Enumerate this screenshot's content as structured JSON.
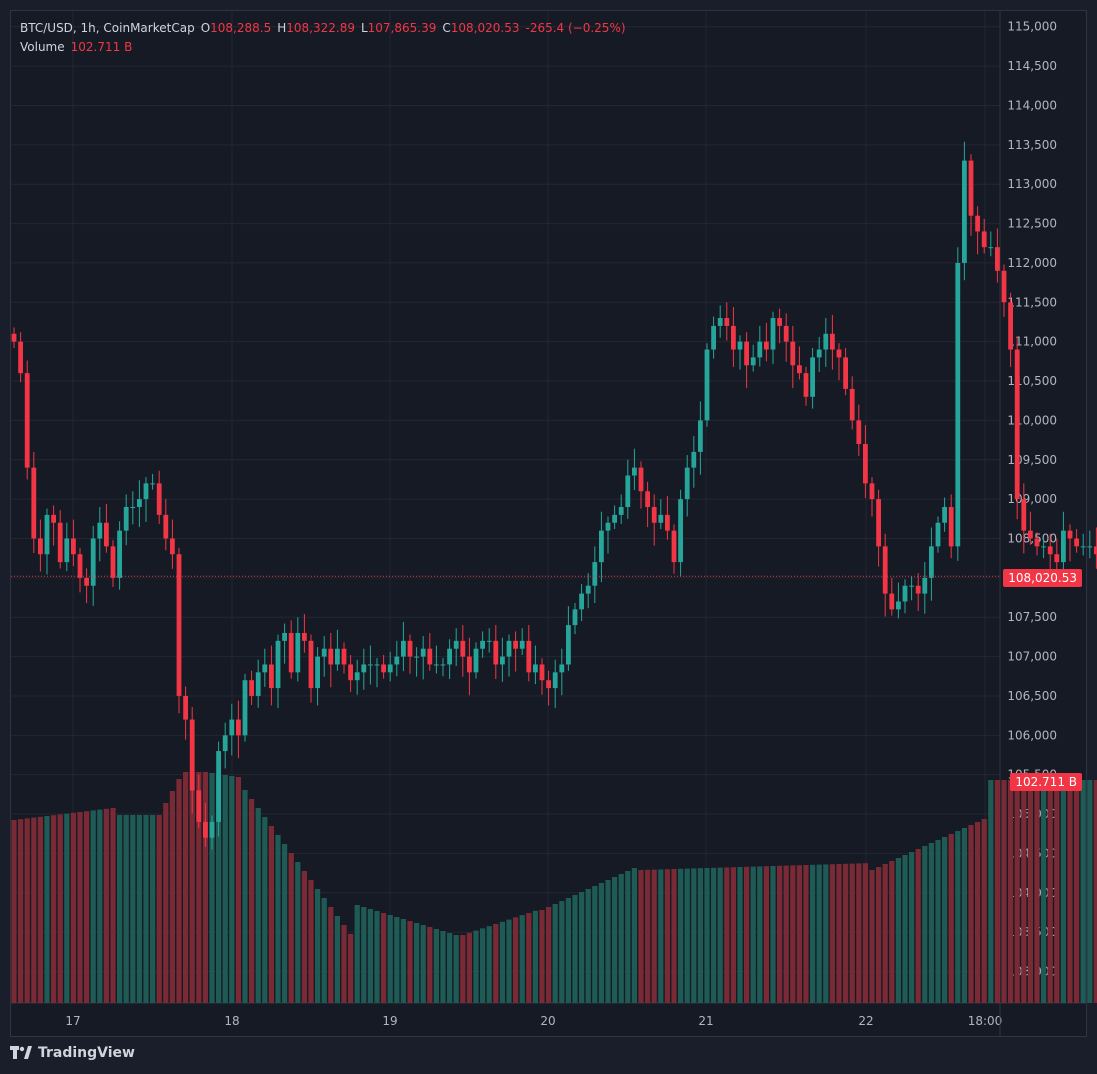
{
  "header": {
    "symbol": "BTC/USD, 1h, CoinMarketCap",
    "o_label": "O",
    "o_value": "108,288.5",
    "h_label": "H",
    "h_value": "108,322.89",
    "l_label": "L",
    "l_value": "107,865.39",
    "c_label": "C",
    "c_value": "108,020.53",
    "change": "-265.4 (−0.25%)",
    "volume_label": "Volume",
    "volume_value": "102.711 B"
  },
  "tags": {
    "last_price": "108,020.53",
    "last_volume": "102.711 B"
  },
  "footer": {
    "brand": "TradingView"
  },
  "colors": {
    "up": "#26a69a",
    "down": "#f23645",
    "volume_up": "#1e5b55",
    "volume_down": "#7a2a34",
    "background": "#161a25",
    "grid": "#232733"
  },
  "chart_data": {
    "type": "candlestick",
    "interval": "1h",
    "ylim": [
      102600,
      115200
    ],
    "y_ticks": [
      "115,000",
      "114,500",
      "114,000",
      "113,500",
      "113,000",
      "112,500",
      "112,000",
      "111,500",
      "111,000",
      "110,500",
      "110,000",
      "109,500",
      "109,000",
      "108,500",
      "108,000",
      "107,500",
      "107,000",
      "106,500",
      "106,000",
      "105,500",
      "105,000",
      "104,500",
      "104,000",
      "103,500",
      "103,000"
    ],
    "x_ticks": [
      "17",
      "18",
      "19",
      "20",
      "21",
      "22",
      "18:00"
    ],
    "last_price": 108020.53,
    "volume_label_value": "102.711 B",
    "series_close": [
      111000,
      110600,
      109400,
      108500,
      108300,
      108800,
      108700,
      108200,
      108500,
      108300,
      108000,
      107900,
      108500,
      108700,
      108400,
      108000,
      108600,
      108900,
      108900,
      109000,
      109200,
      109200,
      108800,
      108500,
      108300,
      106500,
      106200,
      105300,
      104900,
      104700,
      104900,
      105800,
      106000,
      106200,
      106000,
      106700,
      106500,
      106800,
      106900,
      106600,
      107200,
      107300,
      106800,
      107300,
      107200,
      106600,
      107000,
      107100,
      106900,
      107100,
      106900,
      106700,
      106800,
      106900,
      106900,
      106900,
      106800,
      106900,
      107000,
      107200,
      107000,
      107000,
      107100,
      106900,
      106900,
      106900,
      107100,
      107200,
      107000,
      106800,
      107100,
      107200,
      107200,
      106900,
      107000,
      107200,
      107100,
      107200,
      106800,
      106900,
      106700,
      106600,
      106800,
      106900,
      107400,
      107600,
      107800,
      107900,
      108200,
      108600,
      108700,
      108800,
      108900,
      109300,
      109400,
      109100,
      108900,
      108700,
      108800,
      108600,
      108200,
      109000,
      109400,
      109600,
      110000,
      110900,
      111200,
      111300,
      111200,
      110900,
      111000,
      110700,
      110800,
      111000,
      110900,
      111300,
      111200,
      111000,
      110700,
      110600,
      110300,
      110800,
      110900,
      111100,
      110900,
      110800,
      110400,
      110000,
      109700,
      109200,
      109000,
      108400,
      107800,
      107600,
      107700,
      107900,
      107900,
      107800,
      108000,
      108400,
      108700,
      108900,
      108400,
      112000,
      113300,
      112600,
      112400,
      112200,
      112200,
      111900,
      111500,
      110900,
      109000,
      108600,
      108500,
      108400,
      108400,
      108300,
      108200,
      108600,
      108500,
      108400,
      108400,
      108400,
      108300,
      108100,
      108100,
      108020.53
    ]
  }
}
